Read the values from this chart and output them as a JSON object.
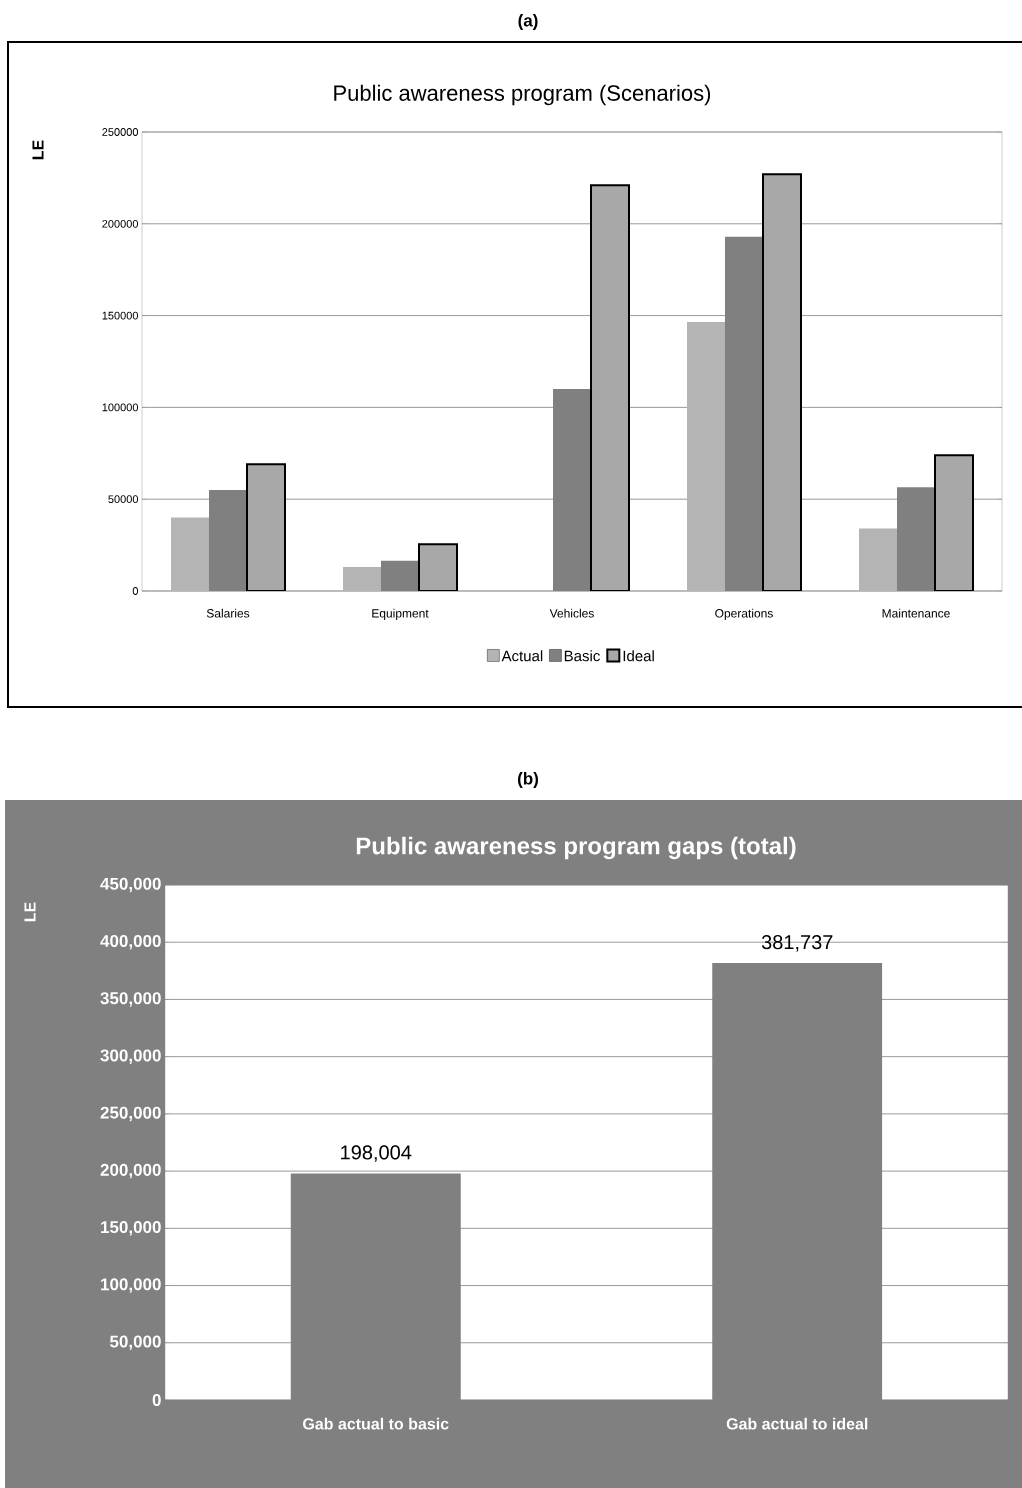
{
  "chart_data": [
    {
      "type": "bar",
      "title": "Public awareness program (Scenarios)",
      "ylabel": "LE",
      "annotations": [
        "(a)"
      ],
      "categories": [
        "Salaries",
        "Equipment",
        "Vehicles",
        "Operations",
        "Maintenance"
      ],
      "series": [
        {
          "name": "Actual",
          "color": "#b4b4b4",
          "values": [
            40000,
            13000,
            0,
            146500,
            34000
          ]
        },
        {
          "name": "Basic",
          "color": "#808080",
          "values": [
            55000,
            16500,
            110000,
            193000,
            56500
          ]
        },
        {
          "name": "Ideal",
          "color": "#a8a8a8",
          "values": [
            69000,
            25500,
            221000,
            227000,
            74000
          ]
        }
      ],
      "ylim": [
        0,
        250000
      ],
      "yticks": [
        0,
        50000,
        100000,
        150000,
        200000,
        250000
      ],
      "grid": "y",
      "legend": "bottom"
    },
    {
      "type": "bar",
      "title": "Public awareness program gaps (total)",
      "ylabel": "LE",
      "annotations": [
        "(b)"
      ],
      "categories": [
        "Gab actual to basic",
        "Gab actual to ideal"
      ],
      "values": [
        198004,
        381737
      ],
      "color": "#808080",
      "value_labels": [
        "198,004",
        "381,737"
      ],
      "ylim": [
        0,
        450000
      ],
      "yticks": [
        {
          "value": 0,
          "label": "0"
        },
        {
          "value": 50000,
          "label": "50,000"
        },
        {
          "value": 100000,
          "label": "100,000"
        },
        {
          "value": 150000,
          "label": "150,000"
        },
        {
          "value": 200000,
          "label": "200,000"
        },
        {
          "value": 250000,
          "label": "250,000"
        },
        {
          "value": 300000,
          "label": "300,000"
        },
        {
          "value": 350000,
          "label": "350,000"
        },
        {
          "value": 400000,
          "label": "400,000"
        },
        {
          "value": 450000,
          "label": "450,000"
        }
      ],
      "grid": "y"
    }
  ]
}
